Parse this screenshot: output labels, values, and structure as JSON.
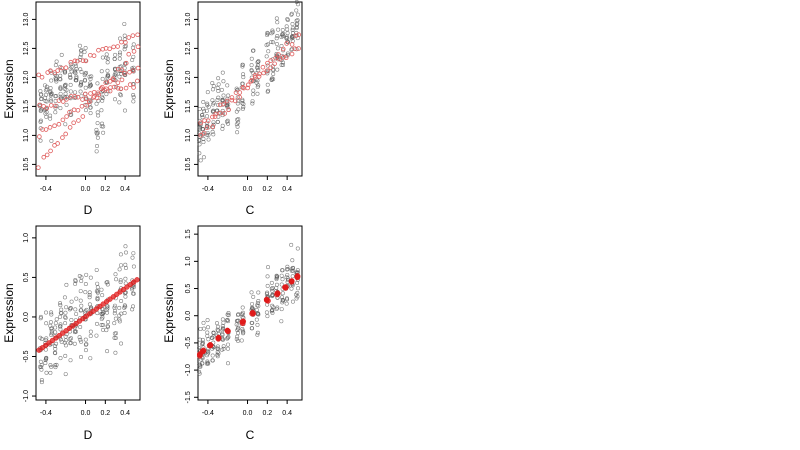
{
  "chart_data": [
    {
      "type": "scatter",
      "xlabel": "D",
      "ylabel": "Expression",
      "xlim": [
        -0.5,
        0.55
      ],
      "ylim": [
        10.3,
        13.3
      ],
      "xticks": [
        -0.4,
        0.0,
        0.2,
        0.4
      ],
      "xtick_labels": [
        "-0.4",
        "0.0",
        "0.2",
        "0.4"
      ],
      "yticks": [
        10.5,
        11.0,
        11.5,
        12.0,
        12.5,
        13.0
      ],
      "ytick_labels": [
        "10.5",
        "11.0",
        "11.5",
        "12.0",
        "12.5",
        "13.0"
      ],
      "grid": false,
      "series": [
        {
          "marker": "open-circle",
          "color": "#555555",
          "x_levels": [
            -0.45,
            -0.4,
            -0.35,
            -0.3,
            -0.25,
            -0.2,
            -0.15,
            -0.1,
            -0.05,
            0.0,
            0.05,
            0.12,
            0.17,
            0.22,
            0.3,
            0.35,
            0.4,
            0.48
          ],
          "y_center": [
            11.4,
            11.5,
            11.7,
            11.8,
            11.7,
            11.9,
            11.8,
            12.0,
            12.0,
            11.8,
            11.9,
            11.4,
            11.6,
            12.0,
            12.0,
            12.1,
            12.3,
            12.2
          ],
          "y_spread": 0.65
        },
        {
          "marker": "open-circle",
          "color": "#e06060",
          "lines": [
            {
              "x0": -0.47,
              "y0": 10.5,
              "x1": 0.52,
              "y1": 12.5
            },
            {
              "x0": -0.47,
              "y0": 11.0,
              "x1": 0.52,
              "y1": 12.2
            },
            {
              "x0": -0.47,
              "y0": 11.5,
              "x1": 0.52,
              "y1": 11.9
            },
            {
              "x0": -0.47,
              "y0": 12.0,
              "x1": 0.52,
              "y1": 12.7
            }
          ]
        }
      ]
    },
    {
      "type": "scatter",
      "xlabel": "C",
      "ylabel": "Expression",
      "xlim": [
        -0.5,
        0.55
      ],
      "ylim": [
        10.3,
        13.3
      ],
      "xticks": [
        -0.4,
        0.0,
        0.2,
        0.4
      ],
      "xtick_labels": [
        "-0.4",
        "0.0",
        "0.2",
        "0.4"
      ],
      "yticks": [
        10.5,
        11.0,
        11.5,
        12.0,
        12.5,
        13.0
      ],
      "ytick_labels": [
        "10.5",
        "11.0",
        "11.5",
        "12.0",
        "12.5",
        "13.0"
      ],
      "grid": false,
      "series": [
        {
          "marker": "open-circle",
          "color": "#555555",
          "x_levels": [
            -0.48,
            -0.45,
            -0.4,
            -0.35,
            -0.3,
            -0.25,
            -0.2,
            -0.1,
            -0.05,
            0.05,
            0.1,
            0.2,
            0.25,
            0.3,
            0.35,
            0.4,
            0.45,
            0.5
          ],
          "y_center": [
            11.1,
            11.2,
            11.3,
            11.4,
            11.6,
            11.5,
            11.5,
            11.5,
            11.8,
            12.0,
            12.0,
            12.3,
            12.3,
            12.4,
            12.5,
            12.6,
            12.7,
            12.9
          ],
          "y_spread": 0.55
        },
        {
          "marker": "open-circle",
          "color": "#e06060",
          "lines": [
            {
              "x0": -0.48,
              "y0": 11.0,
              "x1": 0.52,
              "y1": 12.75
            },
            {
              "x0": -0.48,
              "y0": 11.2,
              "x1": 0.52,
              "y1": 12.55
            }
          ]
        }
      ]
    },
    {
      "type": "scatter",
      "xlabel": "D",
      "ylabel": "Expression",
      "xlim": [
        -0.5,
        0.55
      ],
      "ylim": [
        -1.05,
        1.15
      ],
      "xticks": [
        -0.4,
        0.0,
        0.2,
        0.4
      ],
      "xtick_labels": [
        "-0.4",
        "0.0",
        "0.2",
        "0.4"
      ],
      "yticks": [
        -1.0,
        -0.5,
        0.0,
        0.5,
        1.0
      ],
      "ytick_labels": [
        "-1.0",
        "-0.5",
        "0.0",
        "0.5",
        "1.0"
      ],
      "grid": false,
      "series": [
        {
          "marker": "open-circle",
          "color": "#555555",
          "x_levels": [
            -0.45,
            -0.4,
            -0.35,
            -0.3,
            -0.25,
            -0.2,
            -0.15,
            -0.1,
            -0.05,
            0.0,
            0.05,
            0.12,
            0.17,
            0.22,
            0.3,
            0.35,
            0.4,
            0.48
          ],
          "y_center": [
            -0.4,
            -0.35,
            -0.3,
            -0.25,
            -0.15,
            -0.15,
            -0.1,
            -0.05,
            0.0,
            0.05,
            0.05,
            0.1,
            0.1,
            0.15,
            0.2,
            0.3,
            0.35,
            0.4
          ],
          "y_spread": 0.55
        },
        {
          "marker": "filled-circle",
          "color": "#e01818",
          "line": {
            "x0": -0.47,
            "y0": -0.42,
            "x1": 0.52,
            "y1": 0.47
          }
        }
      ]
    },
    {
      "type": "scatter",
      "xlabel": "C",
      "ylabel": "Expression",
      "xlim": [
        -0.5,
        0.55
      ],
      "ylim": [
        -1.55,
        1.65
      ],
      "xticks": [
        -0.4,
        0.0,
        0.2,
        0.4
      ],
      "xtick_labels": [
        "-0.4",
        "0.0",
        "0.2",
        "0.4"
      ],
      "yticks": [
        -1.5,
        -1.0,
        -0.5,
        0.0,
        0.5,
        1.0,
        1.5
      ],
      "ytick_labels": [
        "-1.5",
        "-1.0",
        "-0.5",
        "0.0",
        "0.5",
        "1.0",
        "1.5"
      ],
      "grid": false,
      "series": [
        {
          "marker": "open-circle",
          "color": "#555555",
          "x_levels": [
            -0.48,
            -0.45,
            -0.4,
            -0.35,
            -0.3,
            -0.25,
            -0.2,
            -0.1,
            -0.05,
            0.05,
            0.1,
            0.2,
            0.25,
            0.3,
            0.35,
            0.4,
            0.45,
            0.5
          ],
          "y_center": [
            -0.7,
            -0.65,
            -0.55,
            -0.45,
            -0.4,
            -0.35,
            -0.3,
            -0.2,
            -0.1,
            0.05,
            0.1,
            0.3,
            0.35,
            0.45,
            0.5,
            0.6,
            0.7,
            0.8
          ],
          "y_spread": 0.5
        },
        {
          "marker": "filled-circle",
          "color": "#e01818",
          "points": [
            {
              "x": -0.48,
              "y": -0.72
            },
            {
              "x": -0.45,
              "y": -0.65
            },
            {
              "x": -0.38,
              "y": -0.55
            },
            {
              "x": -0.3,
              "y": -0.42
            },
            {
              "x": -0.2,
              "y": -0.28
            },
            {
              "x": -0.05,
              "y": -0.12
            },
            {
              "x": 0.05,
              "y": 0.05
            },
            {
              "x": 0.2,
              "y": 0.28
            },
            {
              "x": 0.3,
              "y": 0.4
            },
            {
              "x": 0.38,
              "y": 0.52
            },
            {
              "x": 0.45,
              "y": 0.63
            },
            {
              "x": 0.5,
              "y": 0.72
            }
          ]
        }
      ]
    }
  ]
}
